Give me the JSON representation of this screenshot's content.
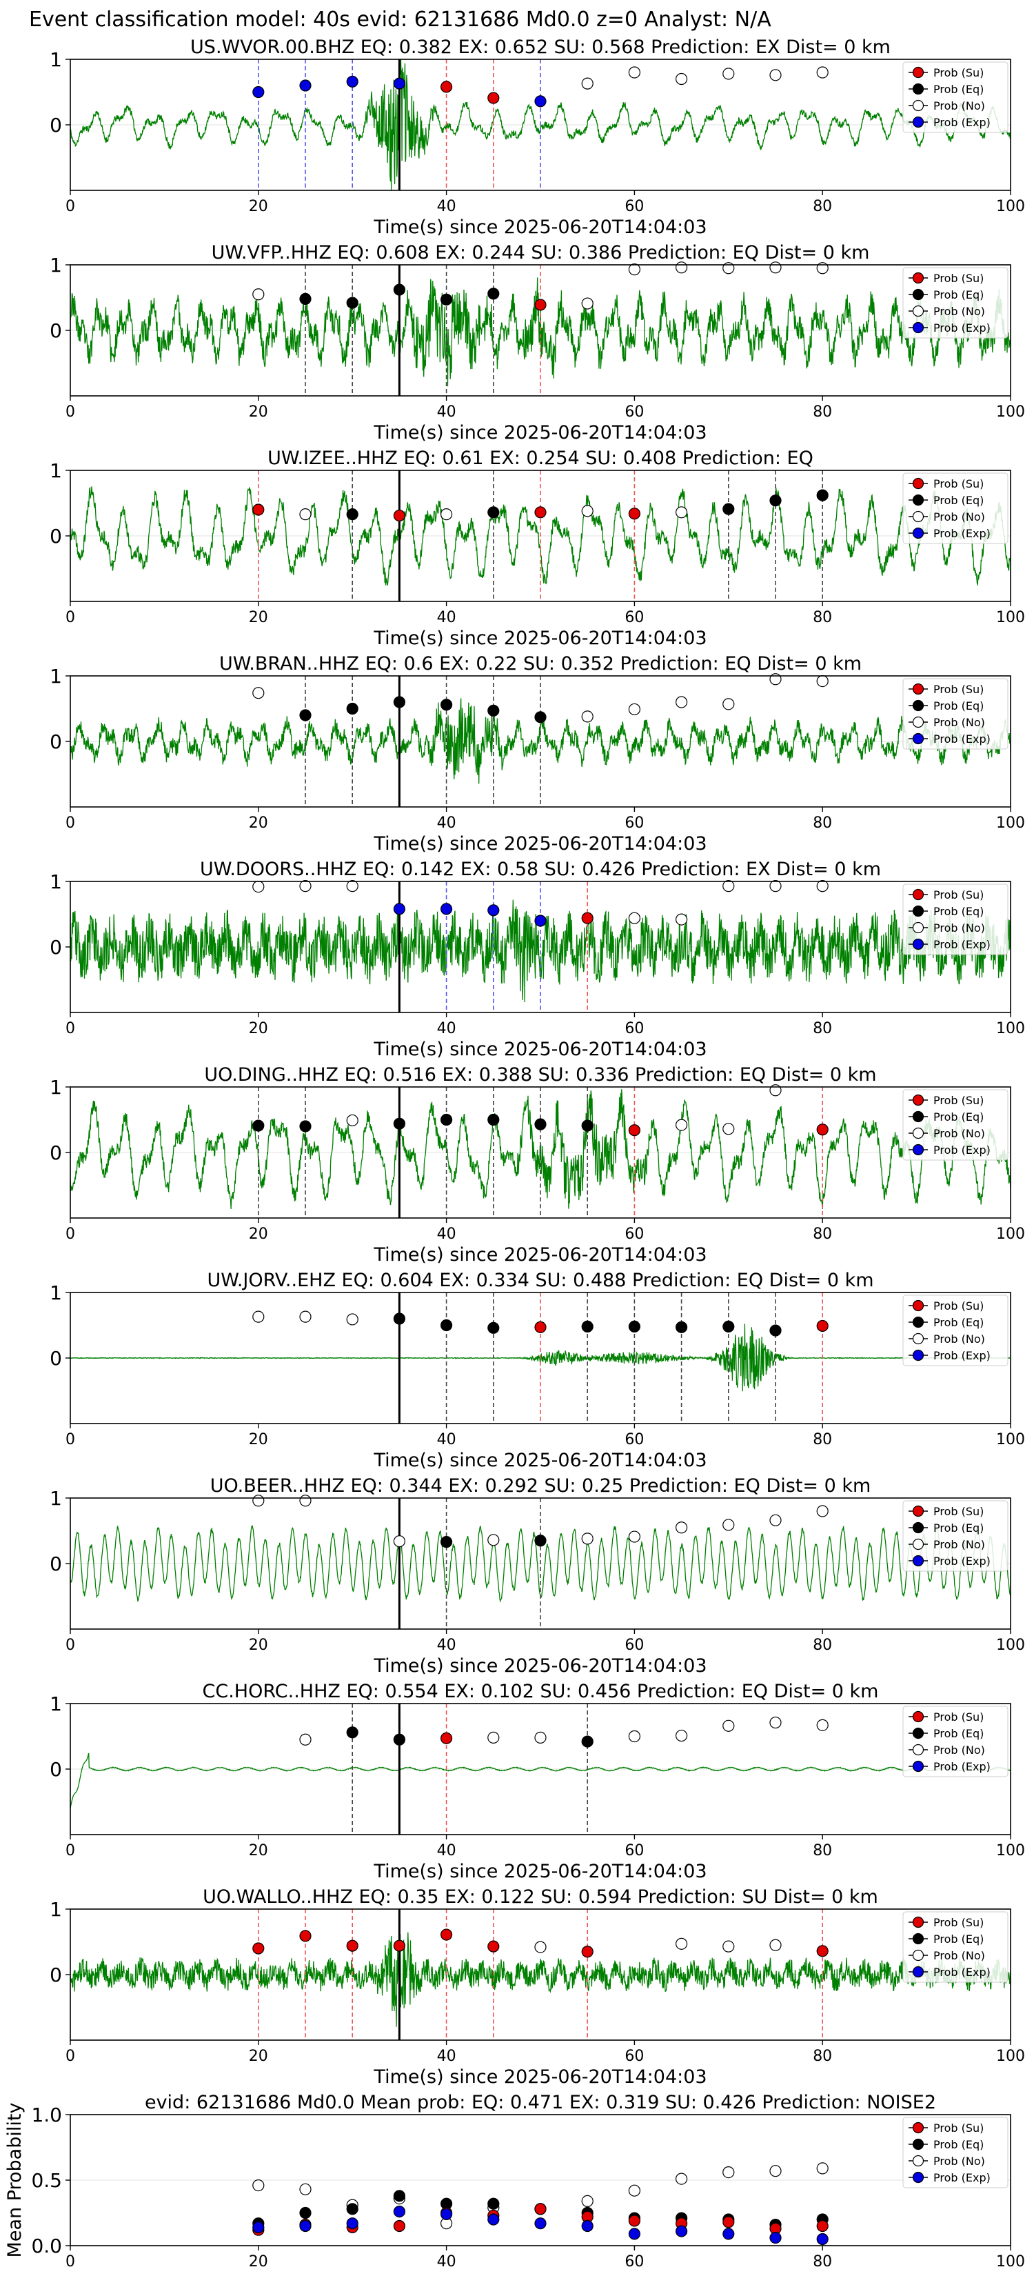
{
  "figure_title": "Event classification model: 40s evid: 62131686 Md0.0 z=0 Analyst: N/A",
  "legend_labels": [
    "Prob (Su)",
    "Prob (Eq)",
    "Prob (No)",
    "Prob (Exp)"
  ],
  "colors": {
    "su": "#e00000",
    "eq": "#000000",
    "no": "#ffffff",
    "exp": "#0000e0",
    "trace": "#008000"
  },
  "chart_data": [
    {
      "type": "line",
      "title": "US.WVOR.00.BHZ   EQ: 0.382  EX: 0.652  SU: 0.568   Prediction: EX    Dist= 0 km",
      "xlabel": "Time(s) since 2025-06-20T14:04:03",
      "xlim": [
        0,
        100
      ],
      "ylim": [
        -1,
        1
      ],
      "xticks": [
        0,
        20,
        40,
        60,
        80,
        100
      ],
      "yticks": [
        0,
        1
      ],
      "trace": {
        "style": "lowfreq",
        "amp": 0.28,
        "bursts": [
          [
            35,
            3.0,
            0.9
          ]
        ],
        "seed": 11
      },
      "pick_line": 35,
      "markers": [
        {
          "t": 20,
          "cls": "exp",
          "p": 0.5
        },
        {
          "t": 25,
          "cls": "exp",
          "p": 0.6
        },
        {
          "t": 30,
          "cls": "exp",
          "p": 0.66
        },
        {
          "t": 35,
          "cls": "exp",
          "p": 0.63
        },
        {
          "t": 40,
          "cls": "su",
          "p": 0.58
        },
        {
          "t": 45,
          "cls": "su",
          "p": 0.41
        },
        {
          "t": 50,
          "cls": "exp",
          "p": 0.36
        },
        {
          "t": 55,
          "cls": "no",
          "p": 0.63
        },
        {
          "t": 60,
          "cls": "no",
          "p": 0.8
        },
        {
          "t": 65,
          "cls": "no",
          "p": 0.7
        },
        {
          "t": 70,
          "cls": "no",
          "p": 0.78
        },
        {
          "t": 75,
          "cls": "no",
          "p": 0.76
        },
        {
          "t": 80,
          "cls": "no",
          "p": 0.8
        }
      ]
    },
    {
      "type": "line",
      "title": "UW.VFP..HHZ   EQ: 0.608  EX: 0.244  SU: 0.386   Prediction: EQ    Dist= 0 km",
      "xlabel": "Time(s) since 2025-06-20T14:04:03",
      "xlim": [
        0,
        100
      ],
      "ylim": [
        -1,
        1
      ],
      "xticks": [
        0,
        20,
        40,
        60,
        80,
        100
      ],
      "yticks": [
        0,
        1
      ],
      "trace": {
        "style": "mixed",
        "amp": 0.55,
        "bursts": [
          [
            40,
            5.0,
            0.5
          ],
          [
            50,
            3.0,
            0.4
          ]
        ],
        "seed": 23
      },
      "pick_line": 35,
      "markers": [
        {
          "t": 20,
          "cls": "no",
          "p": 0.55
        },
        {
          "t": 25,
          "cls": "eq",
          "p": 0.48
        },
        {
          "t": 30,
          "cls": "eq",
          "p": 0.42
        },
        {
          "t": 35,
          "cls": "eq",
          "p": 0.62
        },
        {
          "t": 40,
          "cls": "eq",
          "p": 0.47
        },
        {
          "t": 45,
          "cls": "eq",
          "p": 0.56
        },
        {
          "t": 50,
          "cls": "su",
          "p": 0.39
        },
        {
          "t": 55,
          "cls": "no",
          "p": 0.41
        },
        {
          "t": 60,
          "cls": "no",
          "p": 0.93
        },
        {
          "t": 65,
          "cls": "no",
          "p": 0.96
        },
        {
          "t": 70,
          "cls": "no",
          "p": 0.95
        },
        {
          "t": 75,
          "cls": "no",
          "p": 0.96
        },
        {
          "t": 80,
          "cls": "no",
          "p": 0.95
        }
      ]
    },
    {
      "type": "line",
      "title": "UW.IZEE..HHZ   EQ: 0.61  EX: 0.254  SU: 0.408   Prediction: EQ",
      "xlabel": "Time(s) since 2025-06-20T14:04:03",
      "xlim": [
        0,
        100
      ],
      "ylim": [
        -1,
        1
      ],
      "xticks": [
        0,
        20,
        40,
        60,
        80,
        100
      ],
      "yticks": [
        0,
        1
      ],
      "trace": {
        "style": "lowfreq",
        "amp": 0.6,
        "bursts": [],
        "seed": 37
      },
      "pick_line": 35,
      "markers": [
        {
          "t": 20,
          "cls": "su",
          "p": 0.4
        },
        {
          "t": 25,
          "cls": "no",
          "p": 0.33
        },
        {
          "t": 30,
          "cls": "eq",
          "p": 0.33
        },
        {
          "t": 35,
          "cls": "su",
          "p": 0.31
        },
        {
          "t": 40,
          "cls": "no",
          "p": 0.33
        },
        {
          "t": 45,
          "cls": "eq",
          "p": 0.36
        },
        {
          "t": 50,
          "cls": "su",
          "p": 0.36
        },
        {
          "t": 55,
          "cls": "no",
          "p": 0.38
        },
        {
          "t": 60,
          "cls": "su",
          "p": 0.34
        },
        {
          "t": 65,
          "cls": "no",
          "p": 0.36
        },
        {
          "t": 70,
          "cls": "eq",
          "p": 0.41
        },
        {
          "t": 75,
          "cls": "eq",
          "p": 0.54
        },
        {
          "t": 80,
          "cls": "eq",
          "p": 0.62
        }
      ]
    },
    {
      "type": "line",
      "title": "UW.BRAN..HHZ   EQ: 0.6  EX: 0.22  SU: 0.352   Prediction: EQ    Dist= 0 km",
      "xlabel": "Time(s) since 2025-06-20T14:04:03",
      "xlim": [
        0,
        100
      ],
      "ylim": [
        -1,
        1
      ],
      "xticks": [
        0,
        20,
        40,
        60,
        80,
        100
      ],
      "yticks": [
        0,
        1
      ],
      "trace": {
        "style": "mixed",
        "amp": 0.35,
        "bursts": [
          [
            42,
            4.0,
            0.55
          ]
        ],
        "seed": 41
      },
      "pick_line": 35,
      "markers": [
        {
          "t": 20,
          "cls": "no",
          "p": 0.74
        },
        {
          "t": 25,
          "cls": "eq",
          "p": 0.4
        },
        {
          "t": 30,
          "cls": "eq",
          "p": 0.5
        },
        {
          "t": 35,
          "cls": "eq",
          "p": 0.6
        },
        {
          "t": 40,
          "cls": "eq",
          "p": 0.56
        },
        {
          "t": 45,
          "cls": "eq",
          "p": 0.47
        },
        {
          "t": 50,
          "cls": "eq",
          "p": 0.37
        },
        {
          "t": 55,
          "cls": "no",
          "p": 0.38
        },
        {
          "t": 60,
          "cls": "no",
          "p": 0.49
        },
        {
          "t": 65,
          "cls": "no",
          "p": 0.6
        },
        {
          "t": 70,
          "cls": "no",
          "p": 0.57
        },
        {
          "t": 75,
          "cls": "no",
          "p": 0.95
        },
        {
          "t": 80,
          "cls": "no",
          "p": 0.92
        }
      ]
    },
    {
      "type": "line",
      "title": "UW.DOORS..HHZ   EQ: 0.142  EX: 0.58  SU: 0.426   Prediction: EX    Dist= 0 km",
      "xlabel": "Time(s) since 2025-06-20T14:04:03",
      "xlim": [
        0,
        100
      ],
      "ylim": [
        -1,
        1
      ],
      "xticks": [
        0,
        20,
        40,
        60,
        80,
        100
      ],
      "yticks": [
        0,
        1
      ],
      "trace": {
        "style": "noisy",
        "amp": 0.55,
        "bursts": [
          [
            48,
            2.5,
            0.5
          ]
        ],
        "seed": 53
      },
      "pick_line": 35,
      "markers": [
        {
          "t": 20,
          "cls": "no",
          "p": 0.92
        },
        {
          "t": 25,
          "cls": "no",
          "p": 0.93
        },
        {
          "t": 30,
          "cls": "no",
          "p": 0.93
        },
        {
          "t": 35,
          "cls": "exp",
          "p": 0.58
        },
        {
          "t": 40,
          "cls": "exp",
          "p": 0.58
        },
        {
          "t": 45,
          "cls": "exp",
          "p": 0.56
        },
        {
          "t": 50,
          "cls": "exp",
          "p": 0.4
        },
        {
          "t": 55,
          "cls": "su",
          "p": 0.44
        },
        {
          "t": 60,
          "cls": "no",
          "p": 0.44
        },
        {
          "t": 65,
          "cls": "no",
          "p": 0.42
        },
        {
          "t": 70,
          "cls": "no",
          "p": 0.93
        },
        {
          "t": 75,
          "cls": "no",
          "p": 0.93
        },
        {
          "t": 80,
          "cls": "no",
          "p": 0.93
        }
      ]
    },
    {
      "type": "line",
      "title": "UO.DING..HHZ   EQ: 0.516  EX: 0.388  SU: 0.336   Prediction: EQ    Dist= 0 km",
      "xlabel": "Time(s) since 2025-06-20T14:04:03",
      "xlim": [
        0,
        100
      ],
      "ylim": [
        -1,
        1
      ],
      "xticks": [
        0,
        20,
        40,
        60,
        80,
        100
      ],
      "yticks": [
        0,
        1
      ],
      "trace": {
        "style": "lowfreq",
        "amp": 0.65,
        "bursts": [
          [
            55,
            8.0,
            0.4
          ]
        ],
        "seed": 61
      },
      "pick_line": 35,
      "markers": [
        {
          "t": 20,
          "cls": "eq",
          "p": 0.41
        },
        {
          "t": 25,
          "cls": "eq",
          "p": 0.4
        },
        {
          "t": 30,
          "cls": "no",
          "p": 0.49
        },
        {
          "t": 35,
          "cls": "eq",
          "p": 0.44
        },
        {
          "t": 40,
          "cls": "eq",
          "p": 0.5
        },
        {
          "t": 45,
          "cls": "eq",
          "p": 0.5
        },
        {
          "t": 50,
          "cls": "eq",
          "p": 0.43
        },
        {
          "t": 55,
          "cls": "eq",
          "p": 0.41
        },
        {
          "t": 60,
          "cls": "su",
          "p": 0.34
        },
        {
          "t": 65,
          "cls": "no",
          "p": 0.42
        },
        {
          "t": 70,
          "cls": "no",
          "p": 0.36
        },
        {
          "t": 75,
          "cls": "no",
          "p": 0.95
        },
        {
          "t": 80,
          "cls": "su",
          "p": 0.35
        }
      ]
    },
    {
      "type": "line",
      "title": "UW.JORV..EHZ   EQ: 0.604  EX: 0.334  SU: 0.488   Prediction: EQ    Dist= 0 km",
      "xlabel": "Time(s) since 2025-06-20T14:04:03",
      "xlim": [
        0,
        100
      ],
      "ylim": [
        -1,
        1
      ],
      "xticks": [
        0,
        20,
        40,
        60,
        80,
        100
      ],
      "yticks": [
        0,
        1
      ],
      "trace": {
        "style": "quiet",
        "amp": 0.01,
        "bursts": [
          [
            52,
            3.0,
            0.12
          ],
          [
            60,
            6.0,
            0.1
          ],
          [
            72,
            3.0,
            0.55
          ]
        ],
        "seed": 71
      },
      "pick_line": 35,
      "markers": [
        {
          "t": 20,
          "cls": "no",
          "p": 0.63
        },
        {
          "t": 25,
          "cls": "no",
          "p": 0.63
        },
        {
          "t": 30,
          "cls": "no",
          "p": 0.59
        },
        {
          "t": 35,
          "cls": "eq",
          "p": 0.6
        },
        {
          "t": 40,
          "cls": "eq",
          "p": 0.5
        },
        {
          "t": 45,
          "cls": "eq",
          "p": 0.46
        },
        {
          "t": 50,
          "cls": "su",
          "p": 0.47
        },
        {
          "t": 55,
          "cls": "eq",
          "p": 0.48
        },
        {
          "t": 60,
          "cls": "eq",
          "p": 0.48
        },
        {
          "t": 65,
          "cls": "eq",
          "p": 0.47
        },
        {
          "t": 70,
          "cls": "eq",
          "p": 0.48
        },
        {
          "t": 75,
          "cls": "eq",
          "p": 0.42
        },
        {
          "t": 80,
          "cls": "su",
          "p": 0.49
        }
      ]
    },
    {
      "type": "line",
      "title": "UO.BEER..HHZ   EQ: 0.344  EX: 0.292  SU: 0.25   Prediction: EQ    Dist= 0 km",
      "xlabel": "Time(s) since 2025-06-20T14:04:03",
      "xlim": [
        0,
        100
      ],
      "ylim": [
        -1,
        1
      ],
      "xticks": [
        0,
        20,
        40,
        60,
        80,
        100
      ],
      "yticks": [
        0,
        1
      ],
      "trace": {
        "style": "sine",
        "amp": 0.55,
        "bursts": [],
        "seed": 83
      },
      "pick_line": 35,
      "markers": [
        {
          "t": 20,
          "cls": "no",
          "p": 0.96
        },
        {
          "t": 25,
          "cls": "no",
          "p": 0.96
        },
        {
          "t": 35,
          "cls": "no",
          "p": 0.34
        },
        {
          "t": 40,
          "cls": "eq",
          "p": 0.33
        },
        {
          "t": 45,
          "cls": "no",
          "p": 0.36
        },
        {
          "t": 50,
          "cls": "eq",
          "p": 0.35
        },
        {
          "t": 55,
          "cls": "no",
          "p": 0.38
        },
        {
          "t": 60,
          "cls": "no",
          "p": 0.41
        },
        {
          "t": 65,
          "cls": "no",
          "p": 0.55
        },
        {
          "t": 70,
          "cls": "no",
          "p": 0.59
        },
        {
          "t": 75,
          "cls": "no",
          "p": 0.66
        },
        {
          "t": 80,
          "cls": "no",
          "p": 0.8
        }
      ]
    },
    {
      "type": "line",
      "title": "CC.HORC..HHZ   EQ: 0.554  EX: 0.102  SU: 0.456   Prediction: EQ    Dist= 0 km",
      "xlabel": "Time(s) since 2025-06-20T14:04:03",
      "xlim": [
        0,
        100
      ],
      "ylim": [
        -1,
        1
      ],
      "xticks": [
        0,
        20,
        40,
        60,
        80,
        100
      ],
      "yticks": [
        0,
        1
      ],
      "trace": {
        "style": "flat",
        "amp": 0.04,
        "bursts": [],
        "seed": 91
      },
      "pick_line": 35,
      "markers": [
        {
          "t": 25,
          "cls": "no",
          "p": 0.45
        },
        {
          "t": 30,
          "cls": "eq",
          "p": 0.56
        },
        {
          "t": 35,
          "cls": "eq",
          "p": 0.45
        },
        {
          "t": 40,
          "cls": "su",
          "p": 0.47
        },
        {
          "t": 45,
          "cls": "no",
          "p": 0.48
        },
        {
          "t": 50,
          "cls": "no",
          "p": 0.48
        },
        {
          "t": 55,
          "cls": "eq",
          "p": 0.42
        },
        {
          "t": 60,
          "cls": "no",
          "p": 0.5
        },
        {
          "t": 65,
          "cls": "no",
          "p": 0.51
        },
        {
          "t": 70,
          "cls": "no",
          "p": 0.66
        },
        {
          "t": 75,
          "cls": "no",
          "p": 0.71
        },
        {
          "t": 80,
          "cls": "no",
          "p": 0.67
        }
      ]
    },
    {
      "type": "line",
      "title": "UO.WALLO..HHZ   EQ: 0.35  EX: 0.122  SU: 0.594   Prediction: SU    Dist= 0 km",
      "xlabel": "Time(s) since 2025-06-20T14:04:03",
      "xlim": [
        0,
        100
      ],
      "ylim": [
        -1,
        1
      ],
      "xticks": [
        0,
        20,
        40,
        60,
        80,
        100
      ],
      "yticks": [
        0,
        1
      ],
      "trace": {
        "style": "noisy",
        "amp": 0.25,
        "bursts": [
          [
            35,
            2.0,
            0.7
          ]
        ],
        "seed": 97
      },
      "pick_line": 35,
      "markers": [
        {
          "t": 20,
          "cls": "su",
          "p": 0.4
        },
        {
          "t": 25,
          "cls": "su",
          "p": 0.59
        },
        {
          "t": 30,
          "cls": "su",
          "p": 0.44
        },
        {
          "t": 35,
          "cls": "su",
          "p": 0.44
        },
        {
          "t": 40,
          "cls": "su",
          "p": 0.61
        },
        {
          "t": 45,
          "cls": "su",
          "p": 0.43
        },
        {
          "t": 50,
          "cls": "no",
          "p": 0.42
        },
        {
          "t": 55,
          "cls": "su",
          "p": 0.35
        },
        {
          "t": 65,
          "cls": "no",
          "p": 0.47
        },
        {
          "t": 70,
          "cls": "no",
          "p": 0.43
        },
        {
          "t": 75,
          "cls": "no",
          "p": 0.45
        },
        {
          "t": 80,
          "cls": "su",
          "p": 0.36
        }
      ]
    },
    {
      "type": "scatter",
      "title": "evid: 62131686  Md0.0   Mean prob:   EQ: 0.471  EX: 0.319  SU: 0.426   Prediction: NOISE2",
      "ylabel": "Mean Probability",
      "xlim": [
        0,
        100
      ],
      "ylim": [
        0,
        1
      ],
      "xticks": [
        0,
        20,
        40,
        60,
        80,
        100
      ],
      "yticks": [
        0.0,
        0.5,
        1.0
      ],
      "x": [
        20,
        25,
        30,
        35,
        40,
        45,
        50,
        55,
        60,
        65,
        70,
        75,
        80
      ],
      "series": [
        {
          "name": "Prob (No)",
          "cls": "no",
          "values": [
            0.46,
            0.43,
            0.31,
            0.36,
            0.17,
            0.29,
            0.28,
            0.34,
            0.42,
            0.51,
            0.56,
            0.57,
            0.59
          ]
        },
        {
          "name": "Prob (Eq)",
          "cls": "eq",
          "values": [
            0.17,
            0.25,
            0.28,
            0.38,
            0.32,
            0.32,
            0.28,
            0.25,
            0.21,
            0.21,
            0.2,
            0.16,
            0.2
          ]
        },
        {
          "name": "Prob (Su)",
          "cls": "su",
          "values": [
            0.12,
            0.16,
            0.14,
            0.15,
            0.25,
            0.23,
            0.28,
            0.22,
            0.19,
            0.17,
            0.18,
            0.13,
            0.15
          ]
        },
        {
          "name": "Prob (Exp)",
          "cls": "exp",
          "values": [
            0.14,
            0.15,
            0.17,
            0.26,
            0.24,
            0.2,
            0.17,
            0.15,
            0.09,
            0.11,
            0.09,
            0.06,
            0.05
          ]
        }
      ]
    }
  ]
}
